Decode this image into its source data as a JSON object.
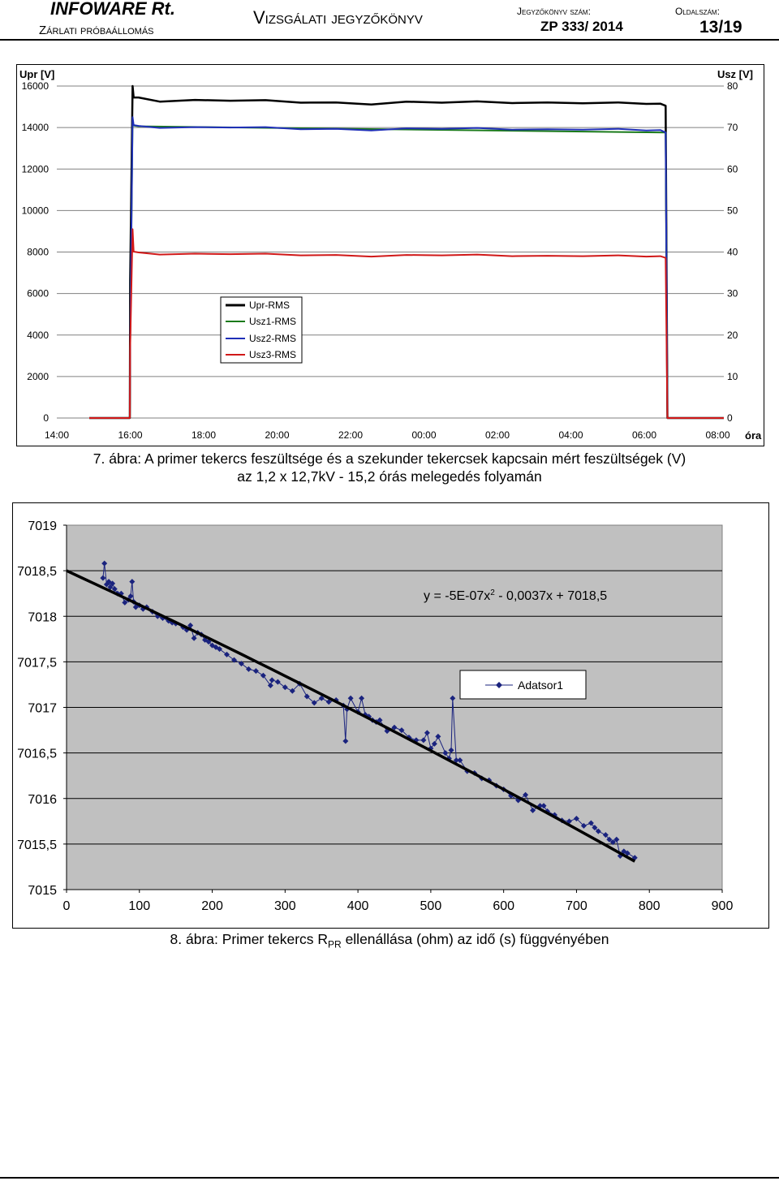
{
  "header": {
    "company": "INFOWARE Rt.",
    "station": "Zárlati próbaállomás",
    "title": "Vizsgálati jegyzőkönyv",
    "report_number_label": "Jegyzőkönyv szám:",
    "report_number": "ZP 333/ 2014",
    "page_label": "Oldalszám:",
    "page_number": "13/19"
  },
  "figure7": {
    "caption_line1": "7. ábra: A primer tekercs feszültsége és a szekunder tekercsek kapcsain mért feszültségek (V)",
    "caption_line2": "az 1,2 x 12,7kV - 15,2 órás melegedés folyamán"
  },
  "figure8": {
    "caption_prefix": "8. ábra: Primer tekercs R",
    "caption_subscript": "PR",
    "caption_suffix": " ellenállása (ohm) az idő (s) függvényében"
  },
  "chart_data": [
    {
      "type": "line",
      "y_left_label": "Upr [V]",
      "y_right_label": "Usz [V]",
      "x_unit_label": "óra",
      "x_ticks": [
        "14:00",
        "16:00",
        "18:00",
        "20:00",
        "22:00",
        "00:00",
        "02:00",
        "04:00",
        "06:00",
        "08:00"
      ],
      "y_left_ticks": [
        "16000",
        "14000",
        "12000",
        "10000",
        "8000",
        "6000",
        "4000",
        "2000",
        "0"
      ],
      "y_right_ticks": [
        "80",
        "70",
        "60",
        "50",
        "40",
        "30",
        "20",
        "10",
        "0"
      ],
      "ylim_left": [
        0,
        16000
      ],
      "ylim_right": [
        0,
        80
      ],
      "xlim_hours": [
        14,
        32
      ],
      "grid": "horizontal",
      "legend_position": "center-left",
      "series": [
        {
          "name": "Upr-RMS",
          "axis": "left",
          "color": "#000000",
          "x": [
            14.0,
            15.15,
            15.16,
            15.23,
            15.26,
            15.4,
            16,
            17,
            18,
            19,
            20,
            21,
            22,
            23,
            24,
            25,
            26,
            27,
            28,
            29,
            29.8,
            30.2,
            30.35,
            30.4,
            30.5,
            32.0
          ],
          "y": [
            0,
            0,
            6600,
            16000,
            15450,
            15450,
            15250,
            15330,
            15290,
            15320,
            15200,
            15210,
            15110,
            15250,
            15200,
            15260,
            15180,
            15210,
            15170,
            15210,
            15140,
            15150,
            15050,
            0,
            0,
            0
          ]
        },
        {
          "name": "Usz1-RMS",
          "axis": "right",
          "color": "#1a7a1a",
          "x": [
            14.0,
            15.15,
            15.16,
            15.23,
            15.26,
            15.4,
            30.35,
            30.4,
            30.5,
            32.0
          ],
          "y": [
            0,
            0,
            17,
            71.5,
            70.5,
            70.3,
            68.8,
            0,
            0,
            0
          ]
        },
        {
          "name": "Usz2-RMS",
          "axis": "right",
          "color": "#1f2fb8",
          "x": [
            14.0,
            15.15,
            15.16,
            15.23,
            15.26,
            15.4,
            16,
            17,
            18,
            19,
            20,
            21,
            22,
            23,
            24,
            25,
            26,
            27,
            28,
            29,
            29.8,
            30.2,
            30.35,
            30.4,
            30.5,
            32.0
          ],
          "y": [
            0,
            0,
            17,
            72.5,
            70.6,
            70.4,
            69.9,
            70.1,
            70.0,
            70.1,
            69.6,
            69.7,
            69.3,
            69.8,
            69.7,
            69.9,
            69.5,
            69.6,
            69.5,
            69.7,
            69.3,
            69.4,
            68.8,
            0,
            0,
            0
          ]
        },
        {
          "name": "Usz3-RMS",
          "axis": "right",
          "color": "#d01818",
          "x": [
            14.0,
            15.15,
            15.16,
            15.23,
            15.26,
            15.4,
            16,
            17,
            18,
            19,
            20,
            21,
            22,
            23,
            24,
            25,
            26,
            27,
            28,
            29,
            29.8,
            30.2,
            30.35,
            30.4,
            30.5,
            32.0
          ],
          "y": [
            0,
            0,
            17,
            45.5,
            40.1,
            39.9,
            39.4,
            39.6,
            39.5,
            39.6,
            39.2,
            39.3,
            38.9,
            39.3,
            39.2,
            39.4,
            39.0,
            39.1,
            39.0,
            39.2,
            38.9,
            39.0,
            38.6,
            0,
            0,
            0
          ]
        }
      ]
    },
    {
      "type": "scatter",
      "x_ticks": [
        "0",
        "100",
        "200",
        "300",
        "400",
        "500",
        "600",
        "700",
        "800",
        "900"
      ],
      "y_ticks": [
        "7019",
        "7018,5",
        "7018",
        "7017,5",
        "7017",
        "7016,5",
        "7016",
        "7015,5",
        "7015"
      ],
      "xlim": [
        0,
        900
      ],
      "ylim": [
        7015,
        7019
      ],
      "grid": "horizontal",
      "legend_position": "center-right",
      "trendline": {
        "equation_parts": [
          "y = -5E-07x",
          "2",
          " - 0,0037x + 7018,5"
        ],
        "coeffs": [
          -5e-07,
          -0.0037,
          7018.5
        ],
        "x_range": [
          0,
          780
        ],
        "color": "#000000"
      },
      "series": [
        {
          "name": "Adatsor1",
          "color": "#1a237e",
          "x": [
            50,
            52,
            55,
            58,
            60,
            63,
            66,
            70,
            75,
            80,
            85,
            88,
            90,
            92,
            95,
            100,
            105,
            110,
            118,
            125,
            132,
            140,
            145,
            150,
            160,
            165,
            170,
            175,
            180,
            185,
            190,
            195,
            200,
            205,
            210,
            220,
            230,
            240,
            250,
            260,
            270,
            280,
            282,
            290,
            300,
            310,
            320,
            330,
            340,
            350,
            360,
            370,
            380,
            383,
            385,
            390,
            400,
            405,
            410,
            415,
            420,
            425,
            430,
            440,
            450,
            460,
            470,
            480,
            490,
            495,
            500,
            505,
            510,
            520,
            525,
            528,
            530,
            535,
            540,
            550,
            560,
            570,
            580,
            590,
            600,
            610,
            620,
            630,
            640,
            650,
            655,
            660,
            670,
            680,
            690,
            700,
            710,
            720,
            725,
            730,
            740,
            745,
            750,
            755,
            760,
            765,
            770,
            780
          ],
          "y": [
            7018.42,
            7018.58,
            7018.35,
            7018.38,
            7018.32,
            7018.36,
            7018.3,
            7018.25,
            7018.25,
            7018.15,
            7018.18,
            7018.22,
            7018.38,
            7018.16,
            7018.1,
            7018.12,
            7018.08,
            7018.1,
            7018.05,
            7018.0,
            7017.98,
            7017.95,
            7017.93,
            7017.92,
            7017.88,
            7017.85,
            7017.9,
            7017.76,
            7017.82,
            7017.8,
            7017.74,
            7017.72,
            7017.68,
            7017.66,
            7017.64,
            7017.58,
            7017.52,
            7017.48,
            7017.42,
            7017.4,
            7017.35,
            7017.24,
            7017.3,
            7017.28,
            7017.22,
            7017.18,
            7017.26,
            7017.12,
            7017.05,
            7017.1,
            7017.06,
            7017.08,
            7017.02,
            7016.63,
            7016.98,
            7017.1,
            7016.95,
            7017.1,
            7016.92,
            7016.9,
            7016.86,
            7016.84,
            7016.86,
            7016.74,
            7016.78,
            7016.75,
            7016.67,
            7016.64,
            7016.64,
            7016.72,
            7016.55,
            7016.6,
            7016.68,
            7016.5,
            7016.44,
            7016.53,
            7017.1,
            7016.42,
            7016.42,
            7016.3,
            7016.28,
            7016.22,
            7016.2,
            7016.14,
            7016.1,
            7016.03,
            7015.98,
            7016.04,
            7015.87,
            7015.92,
            7015.92,
            7015.86,
            7015.82,
            7015.76,
            7015.75,
            7015.78,
            7015.7,
            7015.73,
            7015.68,
            7015.64,
            7015.6,
            7015.55,
            7015.52,
            7015.55,
            7015.37,
            7015.42,
            7015.4,
            7015.35
          ]
        }
      ]
    }
  ]
}
